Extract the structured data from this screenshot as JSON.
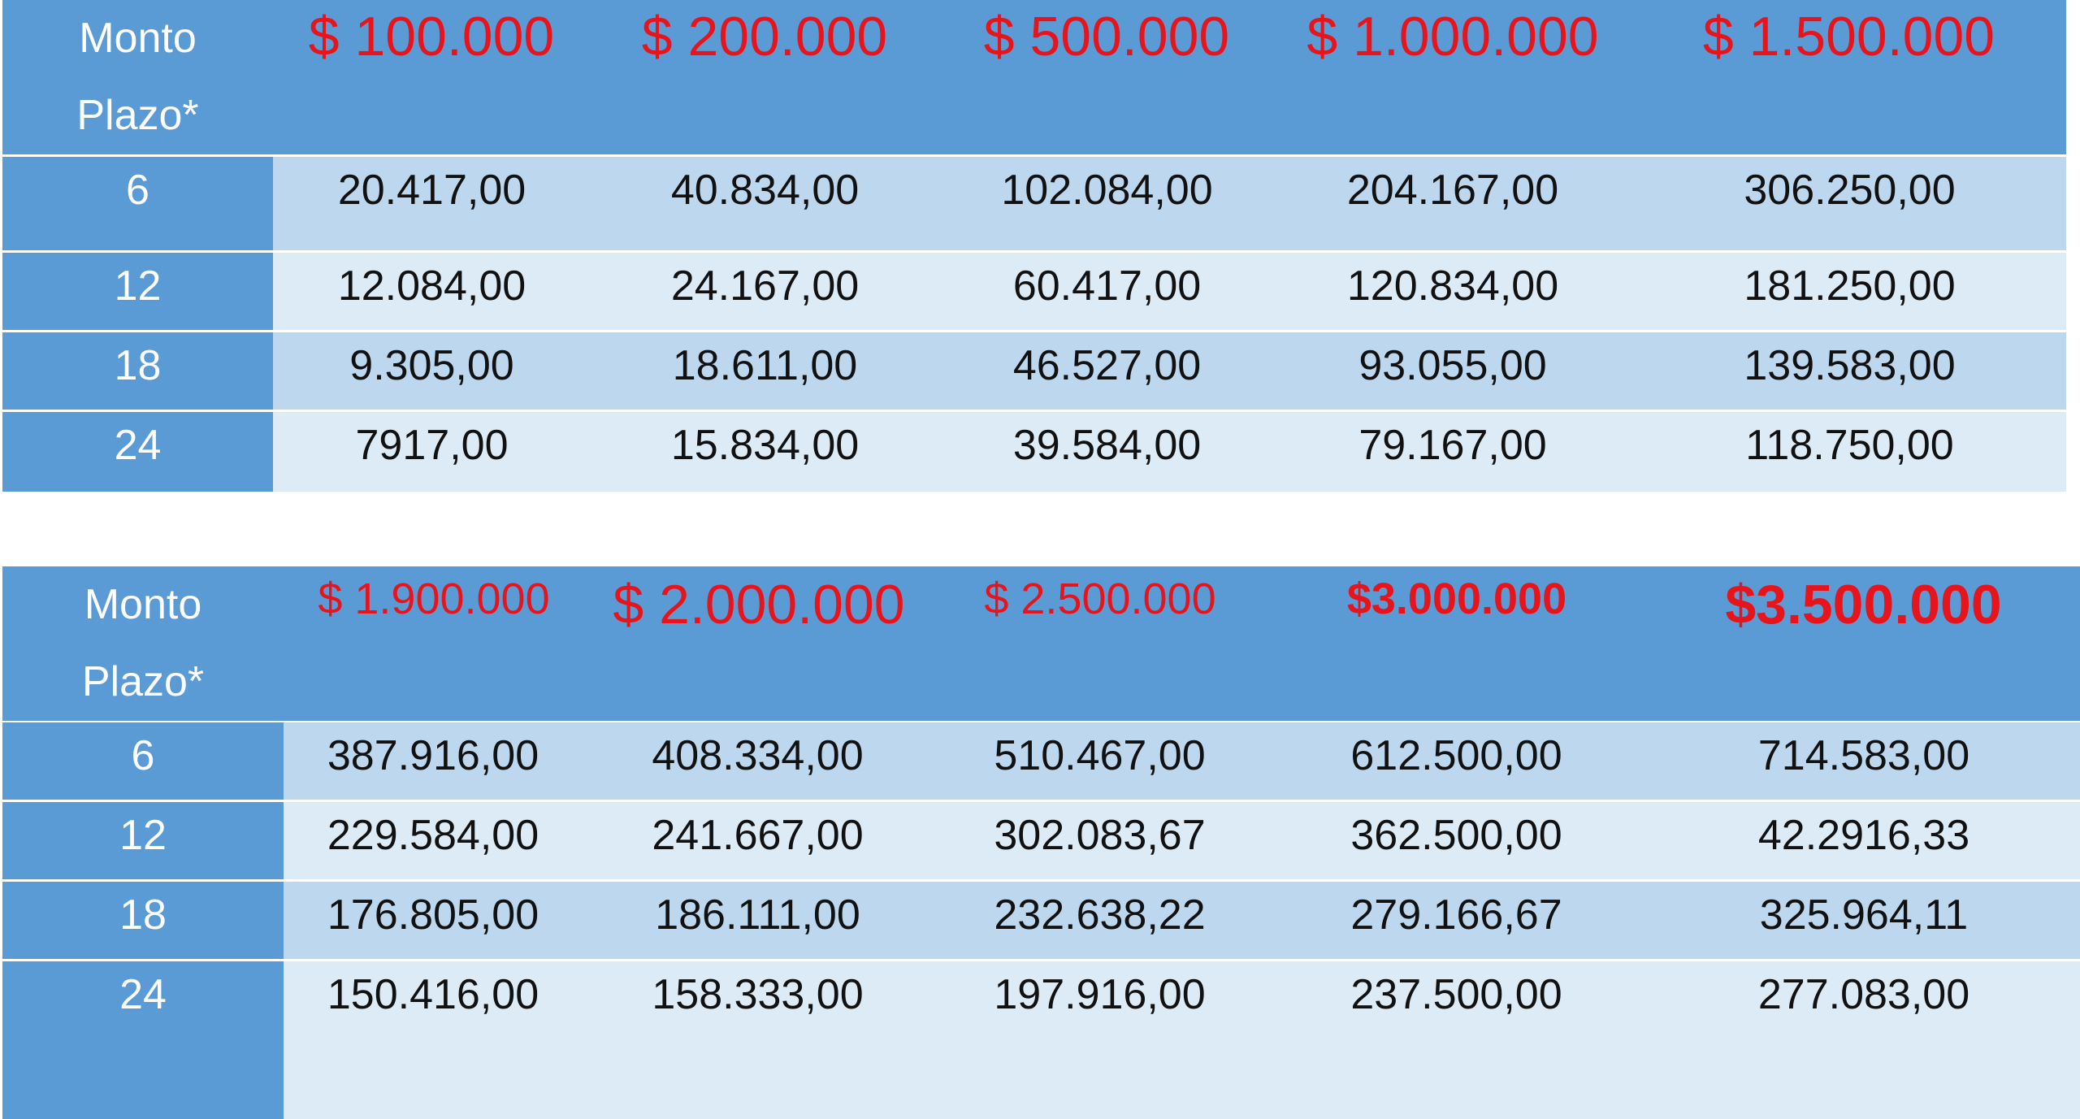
{
  "table1": {
    "header": {
      "monto_label": "Monto",
      "plazo_label": "Plazo*",
      "amounts": [
        "$ 100.000",
        "$ 200.000",
        "$ 500.000",
        "$ 1.000.000",
        "$ 1.500.000"
      ]
    },
    "rows": [
      {
        "plazo": "6",
        "cells": [
          "20.417,00",
          "40.834,00",
          "102.084,00",
          "204.167,00",
          "306.250,00"
        ]
      },
      {
        "plazo": "12",
        "cells": [
          "12.084,00",
          "24.167,00",
          "60.417,00",
          "120.834,00",
          "181.250,00"
        ]
      },
      {
        "plazo": "18",
        "cells": [
          "9.305,00",
          "18.611,00",
          "46.527,00",
          "93.055,00",
          "139.583,00"
        ]
      },
      {
        "plazo": "24",
        "cells": [
          "7917,00",
          "15.834,00",
          "39.584,00",
          "79.167,00",
          "118.750,00"
        ]
      }
    ]
  },
  "table2": {
    "header": {
      "monto_label": "Monto",
      "plazo_label": "Plazo*",
      "amounts": [
        "$ 1.900.000",
        "$ 2.000.000",
        "$ 2.500.000",
        "$3.000.000",
        "$3.500.000"
      ]
    },
    "rows": [
      {
        "plazo": "6",
        "cells": [
          "387.916,00",
          "408.334,00",
          "510.467,00",
          "612.500,00",
          "714.583,00"
        ]
      },
      {
        "plazo": "12",
        "cells": [
          "229.584,00",
          "241.667,00",
          "302.083,67",
          "362.500,00",
          "42.2916,33"
        ]
      },
      {
        "plazo": "18",
        "cells": [
          "176.805,00",
          "186.111,00",
          "232.638,22",
          "279.166,67",
          "325.964,11"
        ]
      },
      {
        "plazo": "24",
        "cells": [
          "150.416,00",
          "158.333,00",
          "197.916,00",
          "237.500,00",
          "277.083,00"
        ]
      }
    ]
  },
  "colors": {
    "header_blue": "#5b9bd5",
    "band_dark": "#bdd7ee",
    "band_light": "#ddebf7",
    "amount_red": "#e8141b",
    "divider": "#ffffff"
  }
}
